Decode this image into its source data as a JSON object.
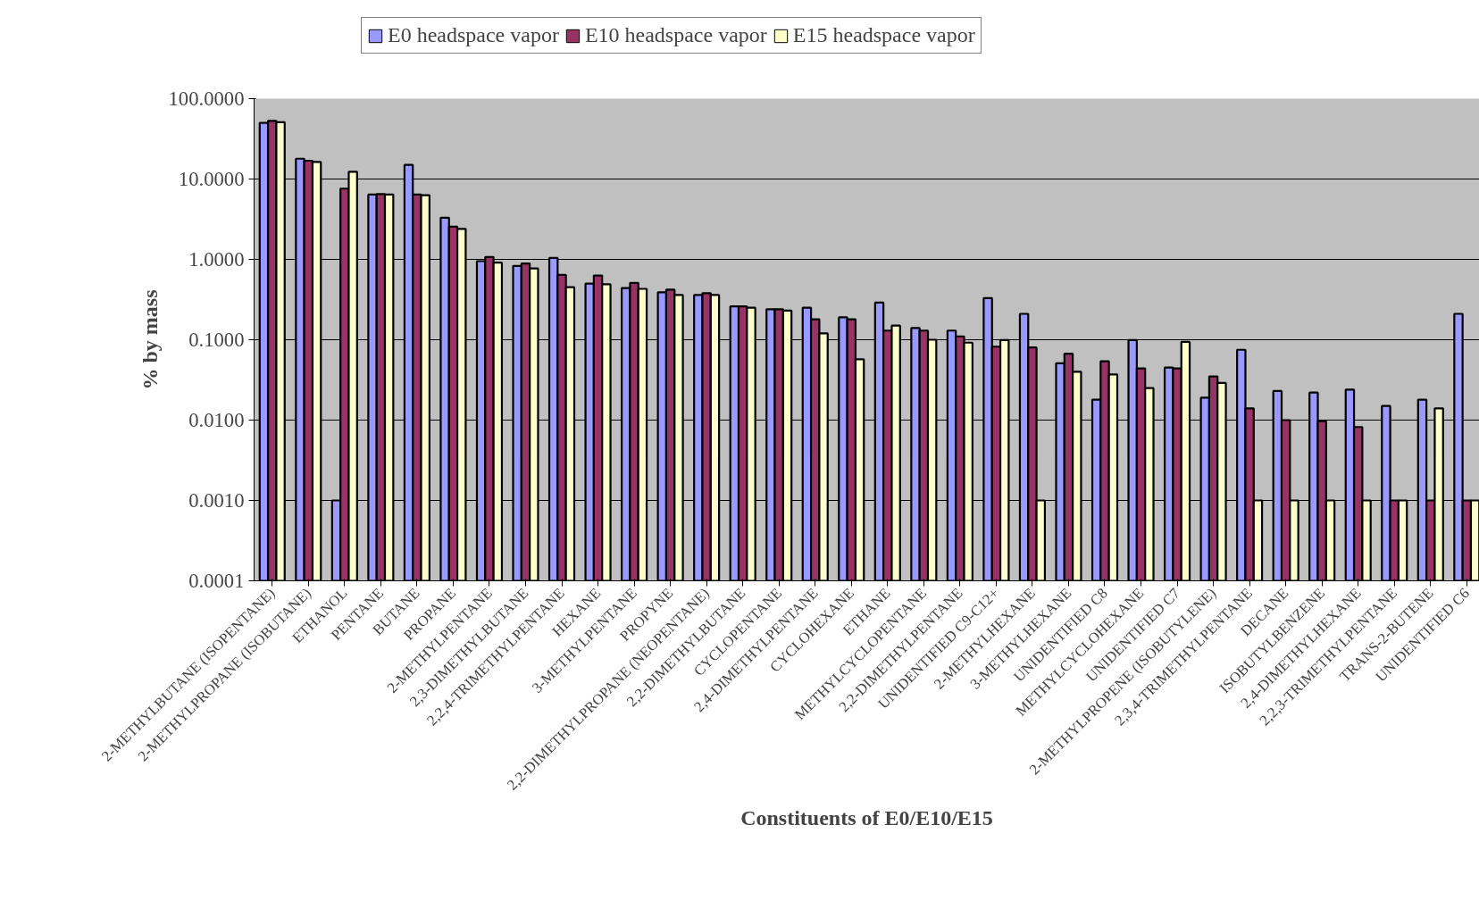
{
  "chart_data": {
    "type": "bar",
    "xlabel": "Constituents of E0/E10/E15",
    "ylabel": "% by mass",
    "log": true,
    "grid": "y",
    "legend": "top",
    "categories": [
      "2-METHYLBUTANE (ISOPENTANE)",
      "2-METHYLPROPANE (ISOBUTANE)",
      "ETHANOL",
      "PENTANE",
      "BUTANE",
      "PROPANE",
      "2-METHYLPENTANE",
      "2,3-DIMETHYLBUTANE",
      "2,2,4-TRIMETHYLPENTANE",
      "HEXANE",
      "3-METHYLPENTANE",
      "PROPYNE",
      "2,2-DIMETHYLPROPANE (NEOPENTANE)",
      "2,2-DIMETHYLBUTANE",
      "CYCLOPENTANE",
      "2,4-DIMETHYLPENTANE",
      "CYCLOHEXANE",
      "ETHANE",
      "METHYLCYCLOPENTANE",
      "2,2-DIMETHYLPENTANE",
      "UNIDENTIFIED C9-C12+",
      "2-METHYLHEXANE",
      "3-METHYLHEXANE",
      "UNIDENTIFIED C8",
      "METHYLCYCLOHEXANE",
      "UNIDENTIFIED C7",
      "2-METHYLPROPENE (ISOBUTYLENE)",
      "2,3,4-TRIMETHYLPENTANE",
      "DECANE",
      "ISOBUTYLBENZENE",
      "2,4-DIMETHYLHEXANE",
      "2,2,3-TRIMETHYLPENTANE",
      "TRANS-2-BUTENE",
      "UNIDENTIFIED C6"
    ],
    "series": [
      {
        "name": "E0 headspace vapor",
        "color": "#9999ff",
        "values": [
          50,
          17.9,
          0.001,
          6.4,
          15,
          3.3,
          0.95,
          0.83,
          1.04,
          0.5,
          0.44,
          0.39,
          0.36,
          0.26,
          0.24,
          0.25,
          0.19,
          0.29,
          0.14,
          0.13,
          0.33,
          0.21,
          0.051,
          0.018,
          0.099,
          0.045,
          0.019,
          0.075,
          0.023,
          0.022,
          0.024,
          0.015,
          0.018,
          0.21
        ]
      },
      {
        "name": "E10 headspace vapor",
        "color": "#993366",
        "values": [
          53,
          16.9,
          7.6,
          6.5,
          6.4,
          2.55,
          1.07,
          0.89,
          0.64,
          0.63,
          0.51,
          0.42,
          0.38,
          0.26,
          0.24,
          0.18,
          0.18,
          0.13,
          0.13,
          0.11,
          0.082,
          0.08,
          0.067,
          0.054,
          0.044,
          0.044,
          0.035,
          0.014,
          0.01,
          0.0097,
          0.0082,
          0.001,
          0.001,
          0.001
        ]
      },
      {
        "name": "E15 headspace vapor",
        "color": "#ffffcc",
        "values": [
          51,
          16.3,
          12.3,
          6.4,
          6.3,
          2.4,
          0.91,
          0.77,
          0.45,
          0.49,
          0.43,
          0.36,
          0.36,
          0.25,
          0.23,
          0.12,
          0.057,
          0.15,
          0.1,
          0.092,
          0.099,
          0.001,
          0.04,
          0.037,
          0.025,
          0.094,
          0.029,
          0.001,
          0.001,
          0.001,
          0.001,
          0.001,
          0.014,
          0.001
        ]
      }
    ],
    "ylim": [
      0.0001,
      100
    ],
    "yticks": [
      {
        "value": 0.0001,
        "label": "0.0001"
      },
      {
        "value": 0.001,
        "label": "0.0010"
      },
      {
        "value": 0.01,
        "label": "0.0100"
      },
      {
        "value": 0.1,
        "label": "0.1000"
      },
      {
        "value": 1,
        "label": "1.0000"
      },
      {
        "value": 10,
        "label": "10.0000"
      },
      {
        "value": 100,
        "label": "100.0000"
      }
    ]
  }
}
